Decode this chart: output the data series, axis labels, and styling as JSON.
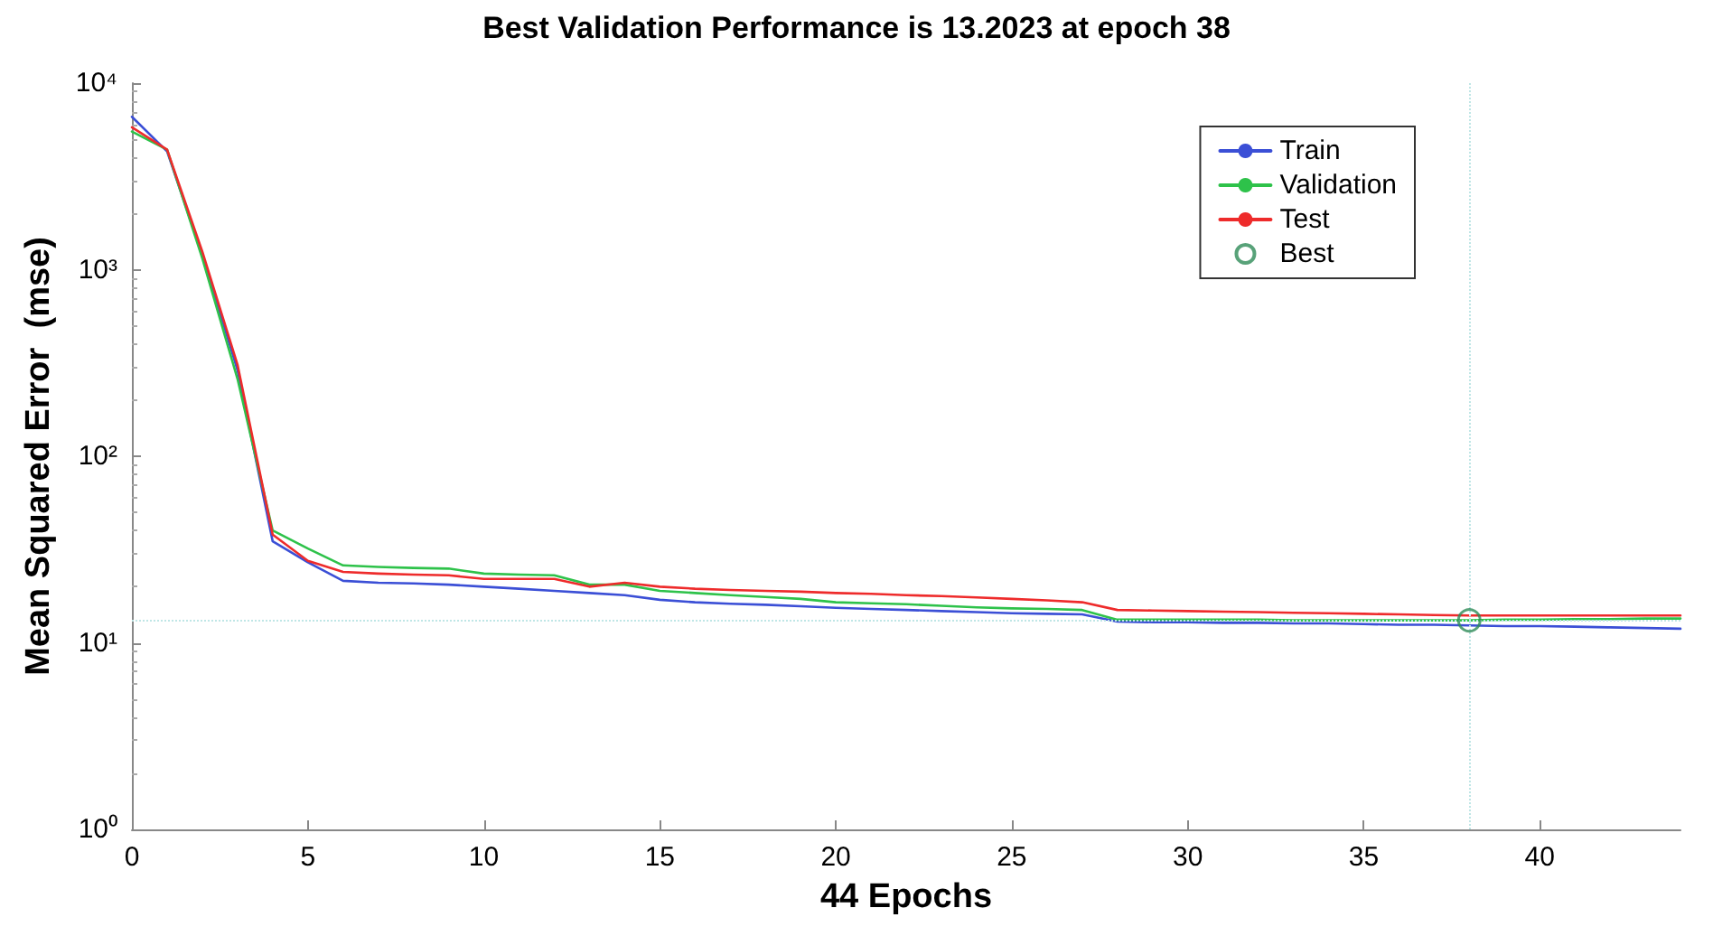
{
  "chart_data": {
    "type": "line",
    "title": "Best Validation Performance is 13.2023 at epoch 38",
    "xlabel": "44 Epochs",
    "ylabel": "Mean Squared Error  (mse)",
    "x": [
      0,
      1,
      2,
      3,
      4,
      5,
      6,
      7,
      8,
      9,
      10,
      11,
      12,
      13,
      14,
      15,
      16,
      17,
      18,
      19,
      20,
      21,
      22,
      23,
      24,
      25,
      26,
      27,
      28,
      29,
      30,
      31,
      32,
      33,
      34,
      35,
      36,
      37,
      38,
      39,
      40,
      41,
      42,
      43,
      44
    ],
    "series": [
      {
        "name": "Train",
        "color": "#3b4fd6",
        "values": [
          6600,
          4300,
          1200,
          290,
          35,
          27,
          21.5,
          21,
          20.8,
          20.5,
          20,
          19.5,
          19,
          18.5,
          18,
          17,
          16.5,
          16.2,
          16,
          15.7,
          15.4,
          15.2,
          15,
          14.8,
          14.6,
          14.4,
          14.3,
          14.2,
          13,
          12.9,
          12.9,
          12.8,
          12.8,
          12.7,
          12.7,
          12.6,
          12.5,
          12.5,
          12.4,
          12.3,
          12.3,
          12.2,
          12.1,
          12,
          11.9
        ]
      },
      {
        "name": "Validation",
        "color": "#2ec24a",
        "values": [
          5500,
          4400,
          1150,
          260,
          40,
          32,
          26,
          25.5,
          25.2,
          25,
          23.5,
          23.2,
          23,
          20.5,
          20.5,
          19,
          18.5,
          18,
          17.6,
          17.2,
          16.5,
          16.3,
          16.1,
          15.8,
          15.5,
          15.3,
          15.2,
          15,
          13.3,
          13.3,
          13.3,
          13.3,
          13.3,
          13.2,
          13.2,
          13.2,
          13.2,
          13.2,
          13.2023,
          13.3,
          13.3,
          13.4,
          13.4,
          13.5,
          13.5
        ]
      },
      {
        "name": "Test",
        "color": "#ee2b2b",
        "values": [
          5800,
          4400,
          1250,
          310,
          38,
          27.5,
          24,
          23.5,
          23.2,
          23,
          22,
          22,
          22,
          20,
          21,
          20,
          19.5,
          19.2,
          19,
          18.8,
          18.5,
          18.3,
          18,
          17.8,
          17.5,
          17.2,
          16.9,
          16.5,
          15,
          14.9,
          14.8,
          14.7,
          14.6,
          14.5,
          14.4,
          14.3,
          14.2,
          14.1,
          14,
          14,
          14,
          14,
          14,
          14,
          14
        ]
      },
      {
        "name": "Best",
        "type": "scatter",
        "marker": "circle",
        "color": "#2e8b57",
        "x": [
          38
        ],
        "values": [
          13.2023
        ]
      }
    ],
    "ref_lines": [
      {
        "axis": "x",
        "value": 38,
        "color": "#bfe6e6",
        "line_style": "dotted"
      },
      {
        "axis": "y",
        "value": 13.2023,
        "color": "#bfe6e6",
        "line_style": "dotted"
      }
    ],
    "log": "y",
    "xlim": [
      0,
      44
    ],
    "xticks": [
      0,
      5,
      10,
      15,
      20,
      25,
      30,
      35,
      40
    ],
    "ylim": [
      1,
      10000
    ],
    "yticks": [
      {
        "value": 1,
        "label": "10⁰"
      },
      {
        "value": 10,
        "label": "10¹"
      },
      {
        "value": 100,
        "label": "10²"
      },
      {
        "value": 1000,
        "label": "10³"
      },
      {
        "value": 10000,
        "label": "10⁴"
      }
    ],
    "grid": false,
    "legend": "top right",
    "marker": "none",
    "line_style": "solid"
  }
}
